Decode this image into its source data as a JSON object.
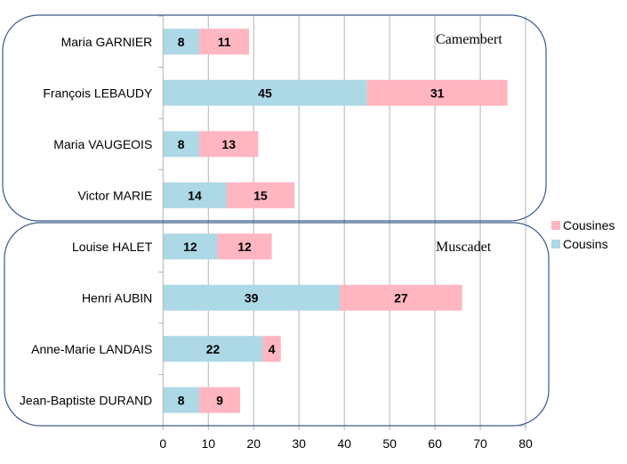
{
  "chart_data": {
    "type": "bar",
    "orientation": "horizontal",
    "stacked": true,
    "categories": [
      "Maria GARNIER",
      "François LEBAUDY",
      "Maria VAUGEOIS",
      "Victor MARIE",
      "Louise HALET",
      "Henri AUBIN",
      "Anne-Marie LANDAIS",
      "Jean-Baptiste DURAND"
    ],
    "series": [
      {
        "name": "Cousins",
        "color": "#add8e6",
        "values": [
          8,
          45,
          8,
          14,
          12,
          39,
          22,
          8
        ]
      },
      {
        "name": "Cousines",
        "color": "#ffb6c1",
        "values": [
          11,
          31,
          13,
          15,
          12,
          27,
          4,
          9
        ]
      }
    ],
    "groups": [
      {
        "label": "Camembert",
        "categories": [
          0,
          1,
          2,
          3
        ]
      },
      {
        "label": "Muscadet",
        "categories": [
          4,
          5,
          6,
          7
        ]
      }
    ],
    "xlim": [
      0,
      80
    ],
    "xticks": [
      0,
      10,
      20,
      30,
      40,
      50,
      60,
      70,
      80
    ],
    "grid": true,
    "legend": {
      "placement": "right",
      "entries": [
        "Cousines",
        "Cousins"
      ]
    },
    "data_labels": true
  }
}
